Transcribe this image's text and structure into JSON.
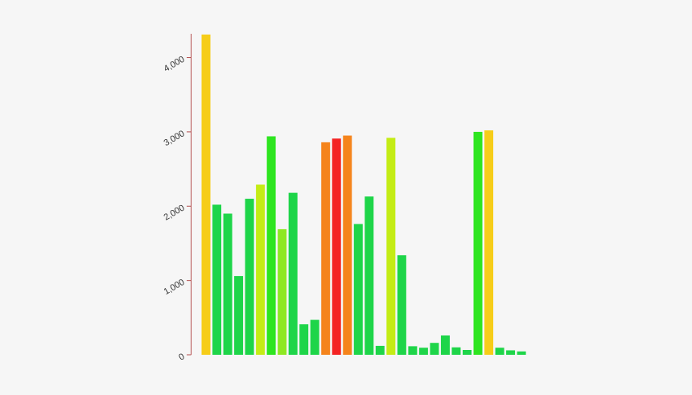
{
  "chart_data": {
    "type": "bar",
    "title": "",
    "xlabel": "",
    "ylabel": "",
    "ylim": [
      0,
      4320
    ],
    "grid": false,
    "legend": "none",
    "y_ticks": [
      0,
      1000,
      2000,
      3000,
      4000
    ],
    "y_tick_labels": [
      "0",
      "1,000",
      "2,000",
      "3,000",
      "4,000"
    ],
    "axis_color": "#b24c4c",
    "values": [
      4310,
      2020,
      1900,
      1060,
      2100,
      2290,
      2940,
      1690,
      2180,
      410,
      470,
      2860,
      2910,
      2950,
      1760,
      2130,
      120,
      2920,
      1340,
      115,
      95,
      160,
      260,
      100,
      65,
      3000,
      3020,
      95,
      60,
      45
    ],
    "colors": [
      "#f6cd19",
      "#1ed549",
      "#1ed549",
      "#1ed549",
      "#1ed549",
      "#c4ec15",
      "#2ee520",
      "#8ee822",
      "#1ed549",
      "#1ed549",
      "#1ed549",
      "#f5841c",
      "#f42323",
      "#f5841c",
      "#1ed549",
      "#1ed549",
      "#1ed549",
      "#c4ec15",
      "#1ed549",
      "#1ed549",
      "#1ed549",
      "#1ed549",
      "#1ed549",
      "#1ed549",
      "#1ed549",
      "#2ee520",
      "#f6cd19",
      "#1ed549",
      "#1ed549",
      "#1ed549"
    ]
  }
}
